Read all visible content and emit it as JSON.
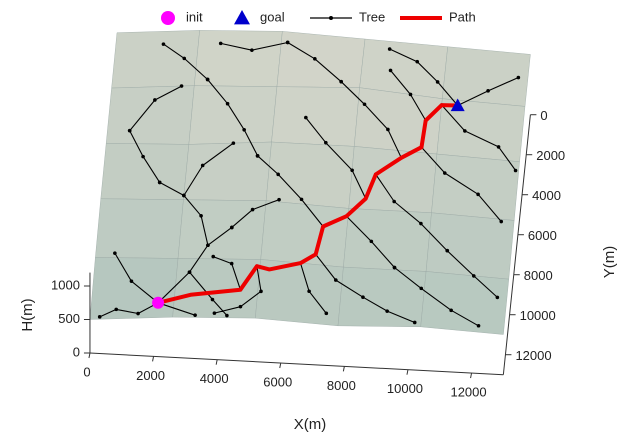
{
  "chart_data": {
    "type": "surface3d",
    "xlabel": "X(m)",
    "ylabel": "Y(m)",
    "zlabel": "H(m)",
    "xlim": [
      0,
      13000
    ],
    "ylim": [
      0,
      13000
    ],
    "zlim": [
      0,
      1200
    ],
    "xticks": [
      0,
      2000,
      4000,
      6000,
      8000,
      10000,
      12000
    ],
    "yticks": [
      0,
      2000,
      4000,
      6000,
      8000,
      10000,
      12000
    ],
    "zticks": [
      0,
      500,
      1000
    ],
    "surface": {
      "x": [
        0,
        2600,
        5200,
        7800,
        10400,
        13000
      ],
      "y": [
        0,
        2600,
        5200,
        7800,
        10400,
        13000
      ],
      "z": [
        [
          900,
          1000,
          1050,
          1000,
          950,
          900
        ],
        [
          850,
          950,
          1000,
          1050,
          950,
          900
        ],
        [
          800,
          850,
          950,
          950,
          900,
          850
        ],
        [
          750,
          800,
          850,
          800,
          800,
          750
        ],
        [
          650,
          700,
          750,
          700,
          700,
          650
        ],
        [
          500,
          600,
          650,
          600,
          650,
          600
        ]
      ]
    },
    "series": [
      {
        "name": "init",
        "color": "#ff00ff",
        "marker": "circle",
        "x": [
          2100
        ],
        "y": [
          12350
        ]
      },
      {
        "name": "goal",
        "color": "#0000cc",
        "marker": "triangle",
        "x": [
          10900
        ],
        "y": [
          2850
        ]
      },
      {
        "name": "Tree",
        "color": "#000000",
        "marker": "dot",
        "x": [
          2100,
          1200,
          600,
          null,
          2100,
          3000,
          3500,
          4200,
          null,
          2100,
          1500,
          800,
          300,
          null,
          2100,
          3300,
          null,
          3500,
          3200,
          2600,
          1800,
          null,
          4200,
          4800,
          5600,
          null,
          5100,
          5300,
          4700,
          3900,
          null,
          6450,
          6800,
          7400,
          null,
          7050,
          6300,
          5500,
          4800,
          null,
          7750,
          8600,
          9400,
          null,
          8300,
          7800,
          6900,
          6200,
          null,
          8550,
          9200,
          10100,
          11000,
          null,
          9300,
          8800,
          8000,
          7200,
          null,
          9900,
          10700,
          11800,
          12600,
          null,
          9950,
          9400,
          8700,
          null,
          10900,
          11800,
          12700,
          null,
          10900,
          10200,
          9500,
          8600,
          null,
          10400,
          11200,
          12300,
          12900,
          null,
          4800,
          4300,
          3700,
          3000,
          null,
          4650,
          4300,
          3700,
          null,
          1800,
          1200,
          700,
          null,
          3000,
          3800,
          4300,
          null,
          6900,
          7600,
          8500,
          9300,
          10200,
          null,
          2600,
          3100,
          4000,
          null,
          11000,
          11900,
          12700,
          null,
          3000,
          2200,
          1500,
          null,
          7200,
          6300,
          5400,
          null,
          700,
          1400,
          2200,
          null,
          9400,
          10300,
          11300,
          12200,
          null,
          5400,
          4300,
          3300
        ],
        "y": [
          12350,
          11400,
          10200,
          null,
          12350,
          11000,
          9800,
          9000,
          null,
          12350,
          12800,
          12600,
          12900,
          null,
          12350,
          12900,
          null,
          9800,
          8500,
          7600,
          7000,
          null,
          9000,
          8200,
          7700,
          null,
          10700,
          11800,
          12500,
          12800,
          null,
          10400,
          11600,
          12500,
          null,
          8700,
          7600,
          6600,
          5800,
          null,
          8150,
          9200,
          10300,
          null,
          7350,
          6200,
          5100,
          4000,
          null,
          6300,
          7400,
          8300,
          9400,
          null,
          5500,
          4300,
          3300,
          2300,
          null,
          4950,
          6000,
          6800,
          7900,
          null,
          3700,
          2600,
          1500,
          null,
          2850,
          2000,
          1200,
          null,
          2850,
          1800,
          900,
          400,
          null,
          2900,
          4000,
          4600,
          5600,
          null,
          5800,
          4600,
          3400,
          2300,
          null,
          11750,
          10600,
          10300,
          null,
          7000,
          5800,
          4600,
          null,
          11000,
          12200,
          12900,
          null,
          9950,
          11000,
          11700,
          12300,
          12800,
          null,
          7600,
          6200,
          5200,
          null,
          9400,
          10400,
          11300,
          null,
          2300,
          1300,
          600,
          null,
          2300,
          1200,
          500,
          null,
          4600,
          3200,
          2600,
          null,
          10300,
          11200,
          12100,
          12700,
          null,
          500,
          900,
          600
        ]
      },
      {
        "name": "Path",
        "color": "#ee0000",
        "marker": "none",
        "x": [
          2100,
          3100,
          4650,
          5100,
          5500,
          6450,
          6900,
          7050,
          7750,
          8300,
          8550,
          9300,
          9900,
          9950,
          10400,
          10900
        ],
        "y": [
          12350,
          12000,
          11750,
          10700,
          10800,
          10400,
          9950,
          8700,
          8150,
          7350,
          6300,
          5500,
          4950,
          3700,
          2900,
          2850
        ]
      }
    ]
  }
}
